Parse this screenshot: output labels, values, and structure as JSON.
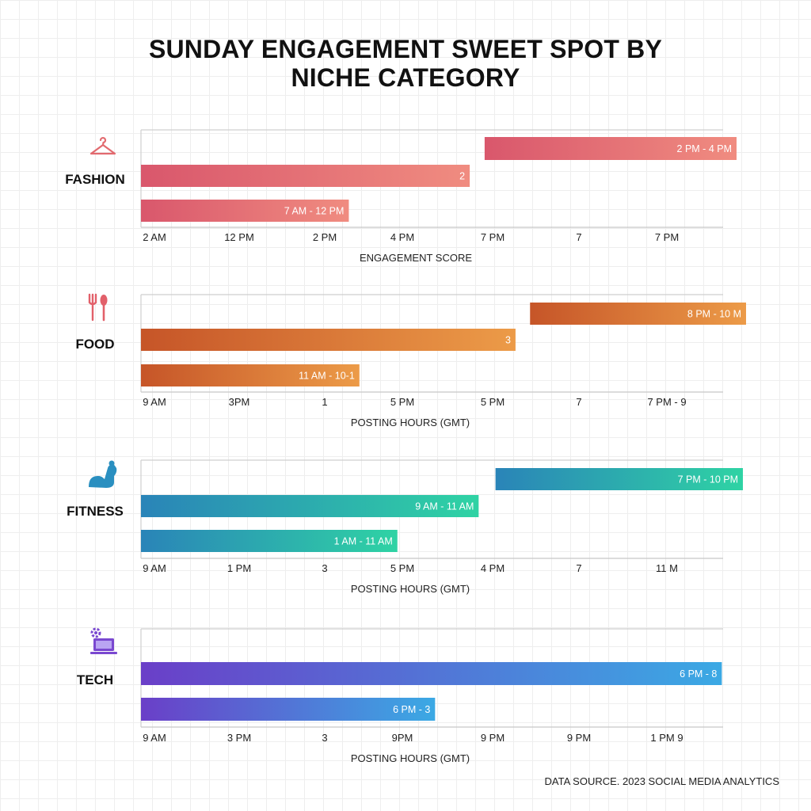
{
  "title_line1": "SUNDAY ENGAGEMENT SWEET SPOT BY",
  "title_line2": "NICHE CATEGORY",
  "footer": "DATA SOURCE. 2023 SOCIAL MEDIA ANALYTICS",
  "chart_data": [
    {
      "type": "bar",
      "category": "FASHION",
      "icon": "hanger-icon",
      "xlabel": "ENGAGEMENT SCORE",
      "tick_labels": [
        "2 AM",
        "12 PM",
        "2 PM",
        "4 PM",
        "7 PM",
        "7",
        "7 PM"
      ],
      "colors": {
        "from": "#d9576c",
        "to": "#f08c80"
      },
      "bars": [
        {
          "label": "2 PM - 4 PM",
          "start": 0.577,
          "end": 1.0
        },
        {
          "label": "2",
          "start": 0.0,
          "end": 0.552
        },
        {
          "label": "7 AM - 12 PM",
          "start": 0.0,
          "end": 0.349
        }
      ]
    },
    {
      "type": "bar",
      "category": "FOOD",
      "icon": "fork-spoon-icon",
      "xlabel": "POSTING HOURS (GMT)",
      "tick_labels": [
        "9 AM",
        "3PM",
        "1",
        "5 PM",
        "5 PM",
        "7",
        "7 PM - 9"
      ],
      "colors": {
        "from": "#c65528",
        "to": "#ec9b48"
      },
      "bars": [
        {
          "label": "8 PM - 10 M",
          "start": 0.643,
          "end": 1.0
        },
        {
          "label": "3",
          "start": 0.0,
          "end": 0.619
        },
        {
          "label": "11 AM - 10-1",
          "start": 0.0,
          "end": 0.361
        }
      ]
    },
    {
      "type": "bar",
      "category": "FITNESS",
      "icon": "flexed-arm-icon",
      "xlabel": "POSTING HOURS (GMT)",
      "tick_labels": [
        "9 AM",
        "1 PM",
        "3",
        "5 PM",
        "4 PM",
        "7",
        "11 M"
      ],
      "colors": {
        "from": "#2a84b8",
        "to": "#2fd3a4"
      },
      "bars": [
        {
          "label": "7 PM - 10 PM",
          "start": 0.589,
          "end": 1.0
        },
        {
          "label": "9 AM - 11 AM",
          "start": 0.0,
          "end": 0.561
        },
        {
          "label": "1 AM - 11 AM",
          "start": 0.0,
          "end": 0.426
        }
      ]
    },
    {
      "type": "bar",
      "category": "TECH",
      "icon": "laptop-gear-icon",
      "xlabel": "POSTING HOURS (GMT)",
      "tick_labels": [
        "9 AM",
        "3 PM",
        "3",
        "9PM",
        "9 PM",
        "9 PM",
        "1 PM 9"
      ],
      "colors": {
        "from": "#6a3fc8",
        "to": "#3ba9e4"
      },
      "bars": [
        {
          "label": "6 PM - 8",
          "start": 0.0,
          "end": 0.95
        },
        {
          "label": "6 PM - 3",
          "start": 0.0,
          "end": 0.481
        }
      ]
    }
  ]
}
